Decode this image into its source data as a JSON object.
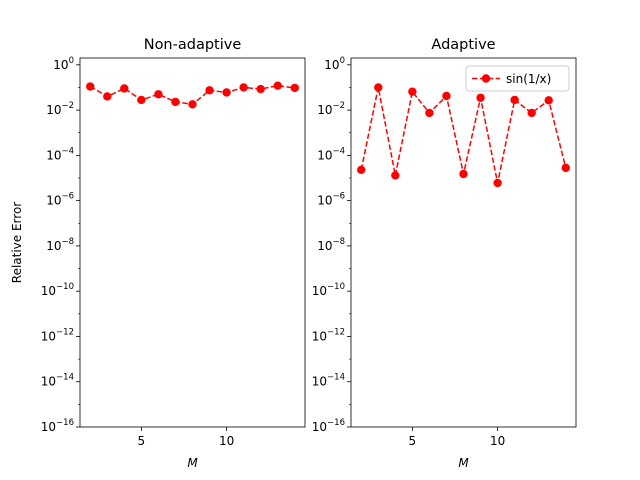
{
  "chart_data": [
    {
      "type": "line",
      "title": "Non-adaptive",
      "xlabel": "M",
      "ylabel": "Relative Error",
      "yscale": "log",
      "xlim": [
        1.4,
        14.6
      ],
      "ylim": [
        1e-16,
        2
      ],
      "xticks": [
        5,
        10
      ],
      "yticks_exp": [
        -16,
        -14,
        -12,
        -10,
        -8,
        -6,
        -4,
        -2,
        0
      ],
      "grid": false,
      "legend": null,
      "series": [
        {
          "color": "#ff0000",
          "linestyle": "dashed",
          "marker": "circle",
          "x": [
            2,
            3,
            4,
            5,
            6,
            7,
            8,
            9,
            10,
            11,
            12,
            13,
            14
          ],
          "y": [
            0.11,
            0.04,
            0.09,
            0.028,
            0.05,
            0.023,
            0.018,
            0.075,
            0.06,
            0.1,
            0.085,
            0.12,
            0.095
          ]
        }
      ]
    },
    {
      "type": "line",
      "title": "Adaptive",
      "xlabel": "M",
      "ylabel": "",
      "yscale": "log",
      "xlim": [
        1.4,
        14.6
      ],
      "ylim": [
        1e-16,
        2
      ],
      "xticks": [
        5,
        10
      ],
      "yticks_exp": [
        -16,
        -14,
        -12,
        -10,
        -8,
        -6,
        -4,
        -2,
        0
      ],
      "grid": false,
      "legend": "top-right",
      "series": [
        {
          "name": "sin(1/x)",
          "color": "#ff0000",
          "linestyle": "dashed",
          "marker": "circle",
          "x": [
            2,
            3,
            4,
            5,
            6,
            7,
            8,
            9,
            10,
            11,
            12,
            13,
            14
          ],
          "y": [
            2.3e-05,
            0.1,
            1.3e-05,
            0.065,
            0.0075,
            0.042,
            1.5e-05,
            0.035,
            6e-06,
            0.028,
            0.0075,
            0.027,
            2.8e-05
          ]
        }
      ]
    }
  ]
}
